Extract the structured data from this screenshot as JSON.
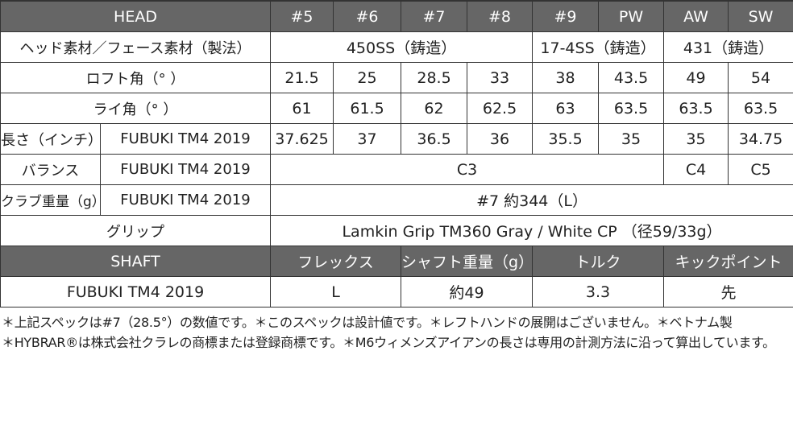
{
  "head": {
    "title": "HEAD",
    "columns": [
      "#5",
      "#6",
      "#7",
      "#8",
      "#9",
      "PW",
      "AW",
      "SW"
    ]
  },
  "rows": {
    "material": {
      "label": "ヘッド素材／フェース素材（製法）",
      "values": [
        "450SS（鋳造）",
        "17-4SS（鋳造）",
        "431（鋳造）"
      ]
    },
    "loft": {
      "label": "ロフト角（° ）",
      "values": [
        "21.5",
        "25",
        "28.5",
        "33",
        "38",
        "43.5",
        "49",
        "54"
      ]
    },
    "lie": {
      "label": "ライ角（° ）",
      "values": [
        "61",
        "61.5",
        "62",
        "62.5",
        "63",
        "63.5",
        "63.5",
        "63.5"
      ]
    },
    "length": {
      "label": "長さ（インチ）",
      "shaft": "FUBUKI TM4 2019",
      "values": [
        "37.625",
        "37",
        "36.5",
        "36",
        "35.5",
        "35",
        "35",
        "34.75"
      ]
    },
    "balance": {
      "label": "バランス",
      "shaft": "FUBUKI TM4 2019",
      "values": [
        "C3",
        "C4",
        "C5"
      ]
    },
    "weight": {
      "label": "クラブ重量（g）",
      "shaft": "FUBUKI TM4 2019",
      "value": "#7 約344（L）"
    },
    "grip": {
      "label": "グリップ",
      "value": "Lamkin Grip TM360 Gray / White CP （径59/33g）"
    }
  },
  "shaft": {
    "headers": [
      "SHAFT",
      "フレックス",
      "シャフト重量（g）",
      "トルク",
      "キックポイント"
    ],
    "values": [
      "FUBUKI TM4 2019",
      "L",
      "約49",
      "3.3",
      "先"
    ]
  },
  "notes": [
    "＊上記スペックは#7（28.5°）の数値です。＊このスペックは設計値です。＊レフトハンドの展開はございません。＊ベトナム製",
    "＊HYBRAR®は株式会社クラレの商標または登録商標です。＊M6ウィメンズアイアンの長さは専用の計測方法に沿って算出しています。"
  ]
}
